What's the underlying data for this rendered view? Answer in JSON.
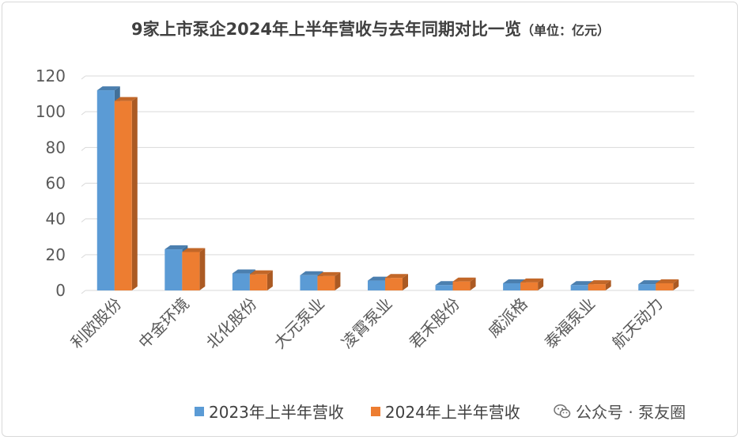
{
  "chart_data": {
    "type": "bar",
    "title": "9家上市泵企2024年上半年营收与去年同期对比一览",
    "unit": "（单位：亿元）",
    "categories": [
      "利欧股份",
      "中金环境",
      "北化股份",
      "大元泵业",
      "凌霄泵业",
      "君禾股份",
      "威派格",
      "泰福泵业",
      "航天动力"
    ],
    "series": [
      {
        "name": "2023年上半年营收",
        "color": "#5b9bd5",
        "values": [
          112,
          23,
          9.5,
          8.5,
          5.5,
          3,
          4,
          3,
          3.5
        ]
      },
      {
        "name": "2024年上半年营收",
        "color": "#ed7d31",
        "values": [
          106,
          21.5,
          9,
          8,
          7,
          5,
          4.5,
          3.5,
          4
        ]
      }
    ],
    "yticks": [
      0,
      20,
      40,
      60,
      80,
      100,
      120
    ],
    "ylim": [
      0,
      120
    ],
    "grid": true,
    "legend_position": "bottom"
  },
  "watermark": {
    "text": "公众号 · 泵友圈",
    "icon": "wechat-icon"
  }
}
